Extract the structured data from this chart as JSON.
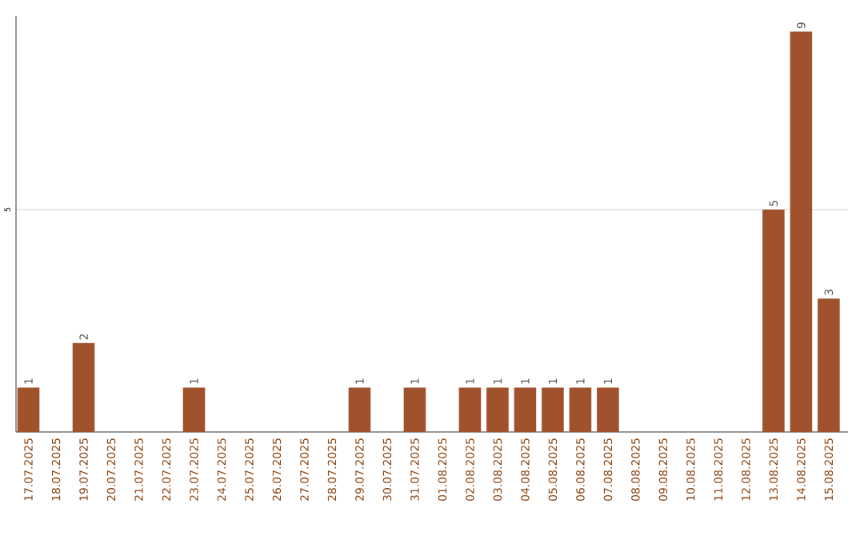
{
  "chart_data": {
    "type": "bar",
    "categories": [
      "17.07.2025",
      "18.07.2025",
      "19.07.2025",
      "20.07.2025",
      "21.07.2025",
      "22.07.2025",
      "23.07.2025",
      "24.07.2025",
      "25.07.2025",
      "26.07.2025",
      "27.07.2025",
      "28.07.2025",
      "29.07.2025",
      "30.07.2025",
      "31.07.2025",
      "01.08.2025",
      "02.08.2025",
      "03.08.2025",
      "04.08.2025",
      "05.08.2025",
      "06.08.2025",
      "07.08.2025",
      "08.08.2025",
      "09.08.2025",
      "10.08.2025",
      "11.08.2025",
      "12.08.2025",
      "13.08.2025",
      "14.08.2025",
      "15.08.2025"
    ],
    "values": [
      1,
      0,
      2,
      0,
      0,
      0,
      1,
      0,
      0,
      0,
      0,
      0,
      1,
      0,
      1,
      0,
      1,
      1,
      1,
      1,
      1,
      1,
      0,
      0,
      0,
      0,
      0,
      5,
      9,
      3
    ],
    "value_labels": [
      "1",
      null,
      "2",
      null,
      null,
      null,
      "1",
      null,
      null,
      null,
      null,
      null,
      "1",
      null,
      "1",
      null,
      "1",
      "1",
      "1",
      "1",
      "1",
      "1",
      null,
      null,
      null,
      null,
      null,
      "5",
      "9",
      "3"
    ],
    "color": "#a0522d",
    "ylim": [
      0,
      9.35
    ],
    "yticks": [
      5
    ],
    "grid": "y"
  }
}
